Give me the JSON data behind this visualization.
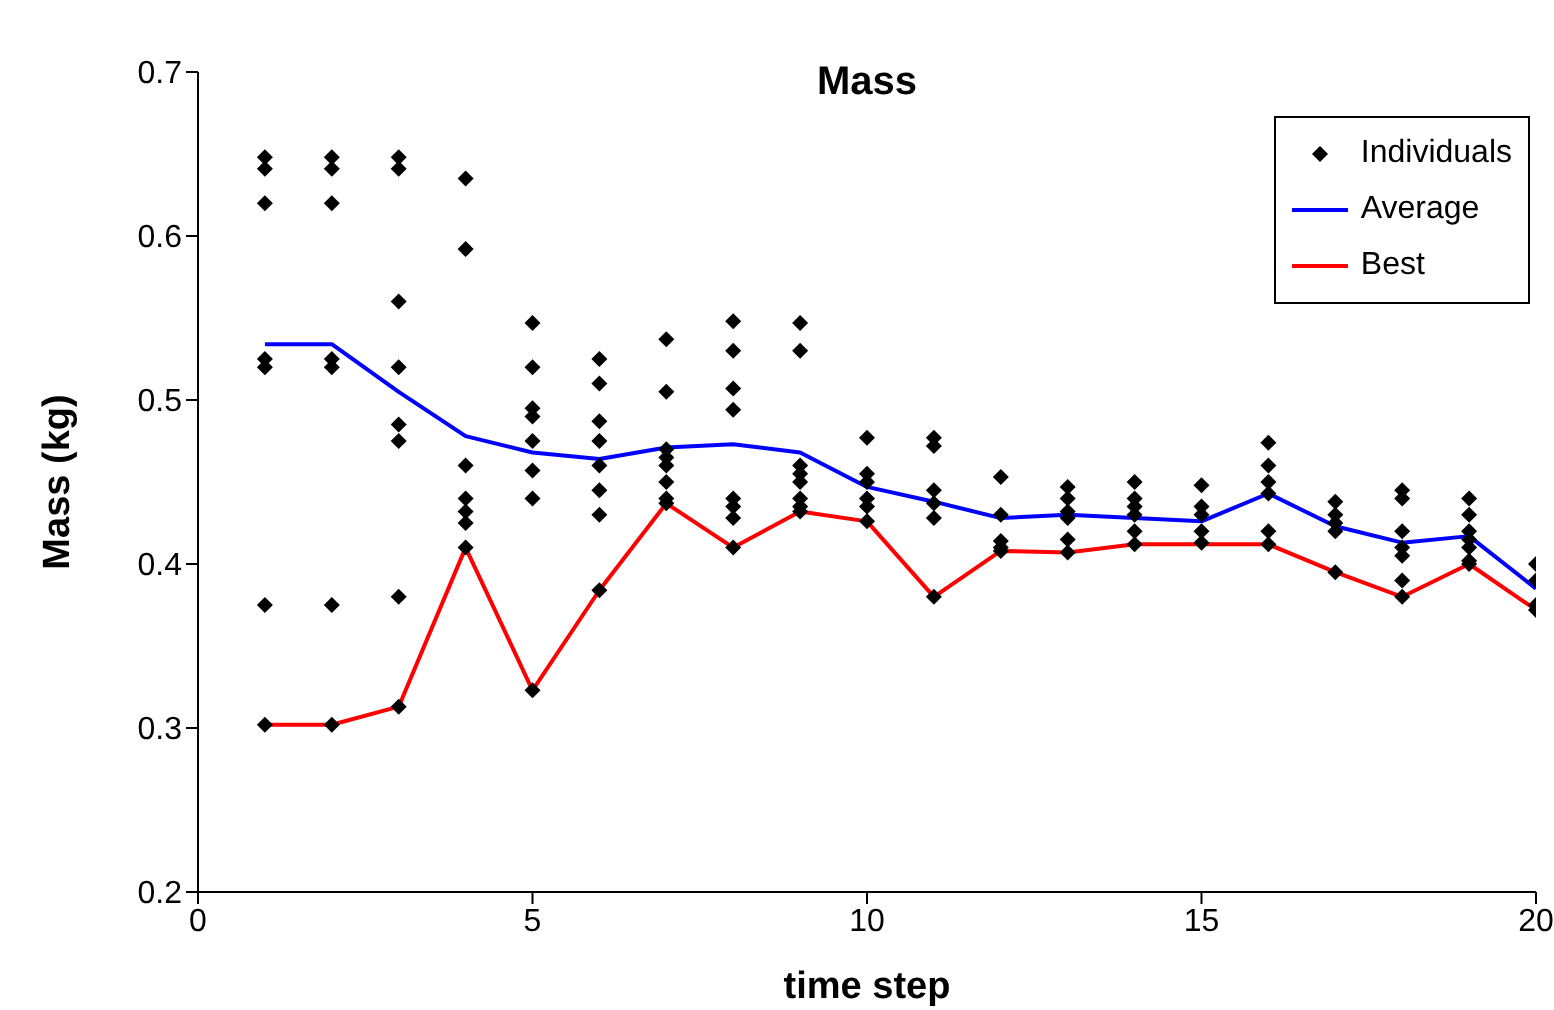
{
  "chart_data": {
    "type": "line",
    "title": "Mass",
    "xlabel": "time step",
    "ylabel": "Mass (kg)",
    "xlim": [
      0,
      20
    ],
    "xticks": [
      0,
      5,
      10,
      15,
      20
    ],
    "ylim": [
      0.2,
      0.7
    ],
    "yticks": [
      0.2,
      0.3,
      0.4,
      0.5,
      0.6,
      0.7
    ],
    "grid": false,
    "legend": "top right",
    "series": [
      {
        "name": "Individuals",
        "type": "scatter",
        "color": "#000000",
        "marker": "diamond",
        "x": [
          1,
          1,
          1,
          1,
          1,
          1,
          1,
          2,
          2,
          2,
          2,
          2,
          2,
          2,
          3,
          3,
          3,
          3,
          3,
          3,
          3,
          3,
          4,
          4,
          4,
          4,
          4,
          4,
          4,
          5,
          5,
          5,
          5,
          5,
          5,
          5,
          5,
          6,
          6,
          6,
          6,
          6,
          6,
          6,
          6,
          7,
          7,
          7,
          7,
          7,
          7,
          7,
          7,
          8,
          8,
          8,
          8,
          8,
          8,
          8,
          8,
          9,
          9,
          9,
          9,
          9,
          9,
          9,
          9,
          10,
          10,
          10,
          10,
          10,
          10,
          11,
          11,
          11,
          11,
          11,
          11,
          12,
          12,
          12,
          12,
          12,
          13,
          13,
          13,
          13,
          13,
          13,
          14,
          14,
          14,
          14,
          14,
          14,
          15,
          15,
          15,
          15,
          15,
          16,
          16,
          16,
          16,
          16,
          16,
          17,
          17,
          17,
          17,
          17,
          18,
          18,
          18,
          18,
          18,
          18,
          18,
          19,
          19,
          19,
          19,
          19,
          19,
          19,
          20,
          20,
          20,
          20
        ],
        "values": [
          0.648,
          0.641,
          0.62,
          0.525,
          0.52,
          0.375,
          0.302,
          0.648,
          0.641,
          0.62,
          0.525,
          0.52,
          0.375,
          0.302,
          0.648,
          0.641,
          0.56,
          0.52,
          0.485,
          0.475,
          0.38,
          0.313,
          0.635,
          0.592,
          0.46,
          0.44,
          0.432,
          0.425,
          0.41,
          0.547,
          0.52,
          0.495,
          0.49,
          0.475,
          0.457,
          0.44,
          0.323,
          0.525,
          0.51,
          0.487,
          0.475,
          0.46,
          0.445,
          0.43,
          0.384,
          0.537,
          0.505,
          0.47,
          0.465,
          0.46,
          0.45,
          0.44,
          0.437,
          0.548,
          0.53,
          0.507,
          0.494,
          0.44,
          0.435,
          0.428,
          0.41,
          0.547,
          0.53,
          0.46,
          0.455,
          0.45,
          0.44,
          0.435,
          0.432,
          0.477,
          0.455,
          0.45,
          0.44,
          0.435,
          0.426,
          0.477,
          0.472,
          0.445,
          0.437,
          0.428,
          0.38,
          0.453,
          0.43,
          0.414,
          0.41,
          0.408,
          0.447,
          0.44,
          0.432,
          0.428,
          0.415,
          0.407,
          0.45,
          0.44,
          0.435,
          0.43,
          0.42,
          0.412,
          0.448,
          0.435,
          0.43,
          0.42,
          0.413,
          0.474,
          0.46,
          0.45,
          0.443,
          0.42,
          0.412,
          0.438,
          0.43,
          0.425,
          0.42,
          0.395,
          0.445,
          0.44,
          0.42,
          0.41,
          0.405,
          0.39,
          0.38,
          0.44,
          0.43,
          0.42,
          0.415,
          0.41,
          0.402,
          0.4,
          0.4,
          0.39,
          0.375,
          0.372
        ]
      },
      {
        "name": "Average",
        "color": "#0000ff",
        "marker": "none",
        "x": [
          1,
          2,
          3,
          4,
          5,
          6,
          7,
          8,
          9,
          10,
          11,
          12,
          13,
          14,
          15,
          16,
          17,
          18,
          19,
          20
        ],
        "values": [
          0.534,
          0.534,
          0.505,
          0.478,
          0.468,
          0.464,
          0.471,
          0.473,
          0.468,
          0.447,
          0.438,
          0.428,
          0.43,
          0.428,
          0.426,
          0.443,
          0.423,
          0.413,
          0.417,
          0.385
        ]
      },
      {
        "name": "Best",
        "color": "#ff0000",
        "marker": "none",
        "x": [
          1,
          2,
          3,
          4,
          5,
          6,
          7,
          8,
          9,
          10,
          11,
          12,
          13,
          14,
          15,
          16,
          17,
          18,
          19,
          20
        ],
        "values": [
          0.302,
          0.302,
          0.313,
          0.41,
          0.323,
          0.384,
          0.437,
          0.41,
          0.432,
          0.426,
          0.38,
          0.408,
          0.407,
          0.412,
          0.412,
          0.412,
          0.395,
          0.38,
          0.4,
          0.372
        ]
      }
    ]
  }
}
